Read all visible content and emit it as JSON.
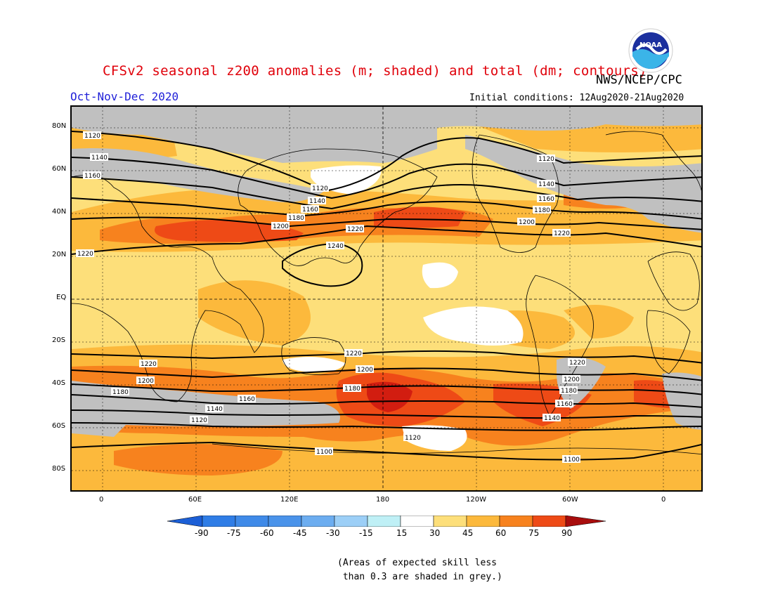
{
  "header": {
    "title": "CFSv2 seasonal z200 anomalies (m; shaded) and total (dm; contours)",
    "org": "NWS/NCEP/CPC",
    "period": "Oct-Nov-Dec 2020",
    "initial_conditions": "Initial conditions: 12Aug2020-21Aug2020",
    "logo_text": "NOAA"
  },
  "map": {
    "lat_labels": [
      "80N",
      "60N",
      "40N",
      "20N",
      "EQ",
      "20S",
      "40S",
      "60S",
      "80S"
    ],
    "lon_labels": [
      "0",
      "60E",
      "120E",
      "180",
      "120W",
      "60W",
      "0"
    ],
    "contour_labels": [
      "1100",
      "1120",
      "1140",
      "1160",
      "1180",
      "1200",
      "1220",
      "1240"
    ],
    "colors": {
      "skill_grey": "#c0c0c0",
      "c15_30": "#fddf7a",
      "c30_45": "#fcb93c",
      "c45_60": "#f7821e",
      "c60_75": "#ee4a16",
      "c75_90": "#d21d10",
      "neutral": "#ffffff"
    }
  },
  "colorbar": {
    "labels": [
      "-90",
      "-75",
      "-60",
      "-45",
      "-30",
      "-15",
      "15",
      "30",
      "45",
      "60",
      "75",
      "90"
    ],
    "colors": [
      "#1c5fd6",
      "#2f7de6",
      "#4a93ea",
      "#6cadf0",
      "#9ccff7",
      "#bff0f6",
      "#ffffff",
      "#fddf7a",
      "#fcb93c",
      "#f7821e",
      "#ee4a16",
      "#d21d10",
      "#a80d0d"
    ]
  },
  "footnote": "(Areas of expected skill less\n than 0.3 are shaded in grey.)"
}
